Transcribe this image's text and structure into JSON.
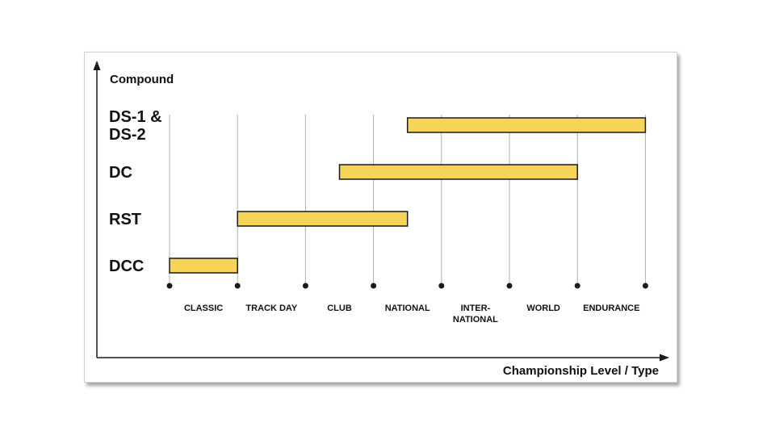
{
  "chart_data": {
    "type": "gantt",
    "ylabel": "Compound",
    "xlabel": "Championship Level / Type",
    "categories": [
      [
        "CLASSIC"
      ],
      [
        "TRACK DAY"
      ],
      [
        "CLUB"
      ],
      [
        "NATIONAL"
      ],
      [
        "INTER-",
        "NATIONAL"
      ],
      [
        "WORLD"
      ],
      [
        "ENDURANCE"
      ]
    ],
    "compounds": [
      {
        "name": [
          "DS-1 &",
          "DS-2"
        ],
        "start": 3.5,
        "end": 7
      },
      {
        "name": [
          "DC"
        ],
        "start": 2.5,
        "end": 6
      },
      {
        "name": [
          "RST"
        ],
        "start": 1,
        "end": 3.5
      },
      {
        "name": [
          "DCC"
        ],
        "start": 0,
        "end": 1
      }
    ],
    "x_range": [
      0,
      7
    ],
    "grid": true,
    "colors": {
      "bar_fill": "#f5d457",
      "bar_stroke": "#1a1a1a",
      "grid": "#b0b0b0",
      "axis": "#1a1a1a"
    }
  }
}
